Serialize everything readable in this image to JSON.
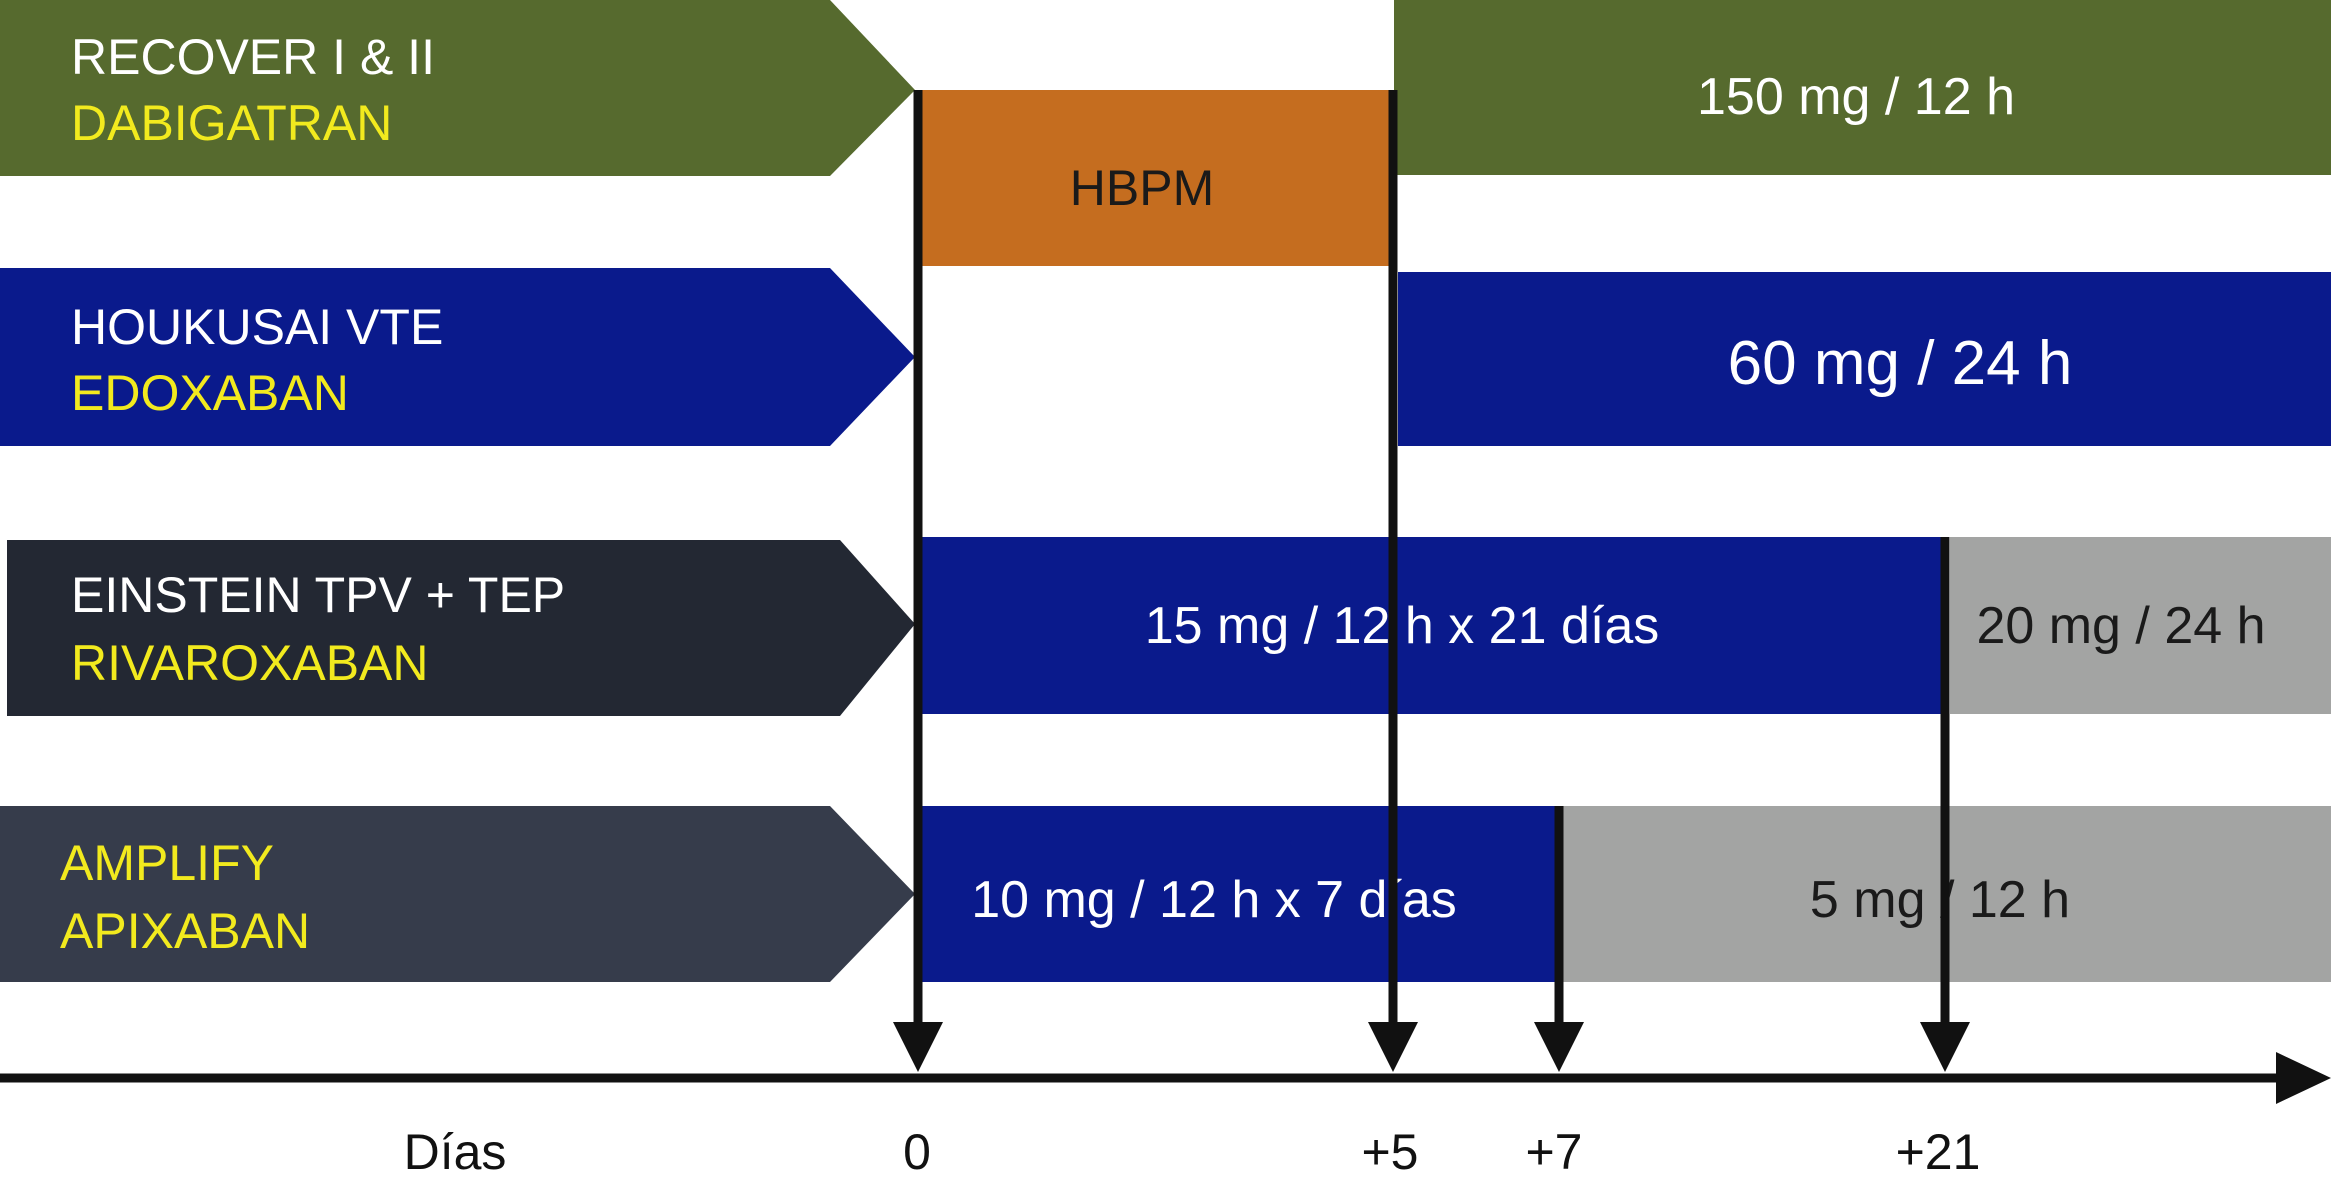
{
  "trials": [
    {
      "trial": "RECOVER I & II",
      "drug": "DABIGATRAN",
      "color": "#566A2E",
      "drug_color": "#F2EA1E",
      "trial_text_color": "#FFFFFF",
      "segments": [
        {
          "label": "HBPM",
          "color": "#C56D1F",
          "text_color": "#1A1A1A"
        },
        {
          "label": "150 mg / 12 h",
          "color": "#566A2E",
          "text_color": "#FFFFFF"
        }
      ]
    },
    {
      "trial": "HOUKUSAI VTE",
      "drug": "EDOXABAN",
      "color": "#0A1A8C",
      "drug_color": "#F2EA1E",
      "trial_text_color": "#FFFFFF",
      "segments": [
        {
          "label": "60 mg / 24 h",
          "color": "#0A1A8C",
          "text_color": "#FFFFFF"
        }
      ]
    },
    {
      "trial": "EINSTEIN TPV + TEP",
      "drug": "RIVAROXABAN",
      "color": "#232833",
      "drug_color": "#F2EA1E",
      "trial_text_color": "#FFFFFF",
      "segments": [
        {
          "label": "15 mg / 12 h x 21 días",
          "color": "#0A1A8C",
          "text_color": "#FFFFFF"
        },
        {
          "label": "20 mg / 24 h",
          "color": "#A3A4A3",
          "text_color": "#1A1A1A"
        }
      ]
    },
    {
      "trial": "AMPLIFY",
      "drug": "APIXABAN",
      "color": "#363C4B",
      "drug_color": "#F2EA1E",
      "trial_text_color": "#F2EA1E",
      "segments": [
        {
          "label": "10 mg / 12 h x 7 días",
          "color": "#0A1A8C",
          "text_color": "#FFFFFF"
        },
        {
          "label": "5 mg / 12 h",
          "color": "#A3A4A3",
          "text_color": "#1A1A1A"
        }
      ]
    }
  ],
  "axis": {
    "title": "Días",
    "ticks": [
      "0",
      "+5",
      "+7",
      "+21"
    ]
  }
}
